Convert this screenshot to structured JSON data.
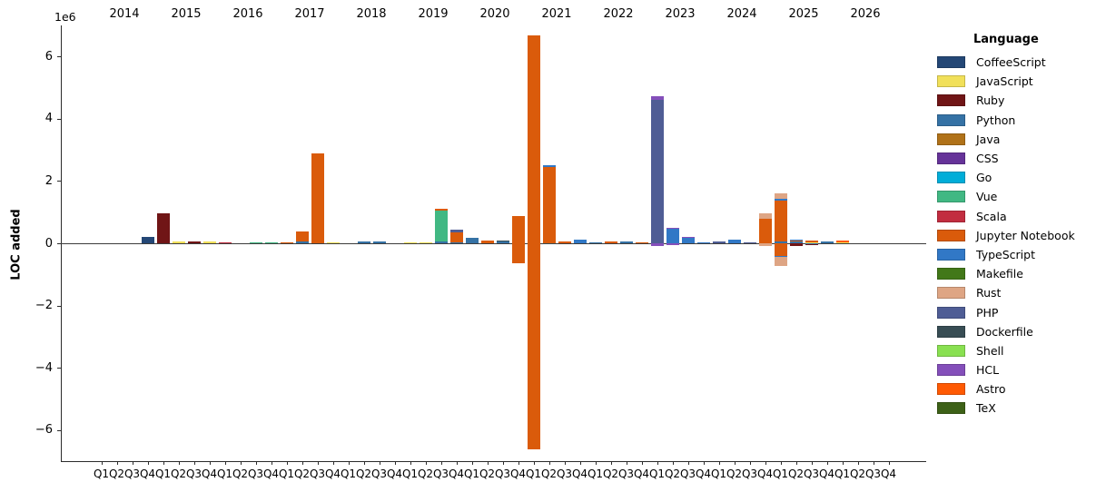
{
  "figure": {
    "ylabel": "LOC added",
    "offset_text": "1e6"
  },
  "chart_data": {
    "type": "bar",
    "stacked": true,
    "title": "",
    "xlabel": "",
    "ylabel": "LOC added",
    "y_offset_text": "1e6",
    "ylim": [
      -7000000,
      7000000
    ],
    "yticks": [
      6,
      4,
      2,
      0,
      -2,
      -4,
      -6
    ],
    "grid": false,
    "legend_position": "right",
    "legend_title": "Language",
    "years": [
      "2014",
      "2015",
      "2016",
      "2017",
      "2018",
      "2019",
      "2020",
      "2021",
      "2022",
      "2023",
      "2024",
      "2025",
      "2026"
    ],
    "quarter_labels": [
      "Q1",
      "Q2",
      "Q3",
      "Q4"
    ],
    "languages": [
      {
        "name": "CoffeeScript",
        "color": "#244776"
      },
      {
        "name": "JavaScript",
        "color": "#f1e05a"
      },
      {
        "name": "Ruby",
        "color": "#701516"
      },
      {
        "name": "Python",
        "color": "#3572A5"
      },
      {
        "name": "Java",
        "color": "#b07219"
      },
      {
        "name": "CSS",
        "color": "#663399"
      },
      {
        "name": "Go",
        "color": "#00ADD8"
      },
      {
        "name": "Vue",
        "color": "#41b883"
      },
      {
        "name": "Scala",
        "color": "#c22d40"
      },
      {
        "name": "Jupyter Notebook",
        "color": "#DA5B0B"
      },
      {
        "name": "TypeScript",
        "color": "#3178c6"
      },
      {
        "name": "Makefile",
        "color": "#427819"
      },
      {
        "name": "Rust",
        "color": "#dea584"
      },
      {
        "name": "PHP",
        "color": "#4F5D95"
      },
      {
        "name": "Dockerfile",
        "color": "#384d54"
      },
      {
        "name": "Shell",
        "color": "#89e051"
      },
      {
        "name": "HCL",
        "color": "#844FBA"
      },
      {
        "name": "Astro",
        "color": "#ff5a03"
      },
      {
        "name": "TeX",
        "color": "#3D6117"
      }
    ],
    "bars": [
      {
        "year": "2014",
        "quarter": "Q4",
        "segments": [
          {
            "language": "CoffeeScript",
            "value": 190000
          }
        ]
      },
      {
        "year": "2015",
        "quarter": "Q1",
        "segments": [
          {
            "language": "Ruby",
            "value": 970000
          }
        ]
      },
      {
        "year": "2015",
        "quarter": "Q2",
        "segments": [
          {
            "language": "JavaScript",
            "value": 50000
          }
        ]
      },
      {
        "year": "2015",
        "quarter": "Q3",
        "segments": [
          {
            "language": "Ruby",
            "value": 50000
          }
        ]
      },
      {
        "year": "2015",
        "quarter": "Q4",
        "segments": [
          {
            "language": "JavaScript",
            "value": 50000
          }
        ]
      },
      {
        "year": "2016",
        "quarter": "Q1",
        "segments": [
          {
            "language": "Scala",
            "value": 40000
          }
        ]
      },
      {
        "year": "2016",
        "quarter": "Q3",
        "segments": [
          {
            "language": "Vue",
            "value": 40000
          }
        ]
      },
      {
        "year": "2016",
        "quarter": "Q4",
        "segments": [
          {
            "language": "Vue",
            "value": 40000
          }
        ]
      },
      {
        "year": "2017",
        "quarter": "Q1",
        "segments": [
          {
            "language": "Jupyter Notebook",
            "value": 40000
          }
        ]
      },
      {
        "year": "2017",
        "quarter": "Q2",
        "segments": [
          {
            "language": "Python",
            "value": 60000
          },
          {
            "language": "Jupyter Notebook",
            "value": 330000
          }
        ]
      },
      {
        "year": "2017",
        "quarter": "Q3",
        "segments": [
          {
            "language": "Jupyter Notebook",
            "value": 2900000
          }
        ]
      },
      {
        "year": "2017",
        "quarter": "Q4",
        "segments": [
          {
            "language": "JavaScript",
            "value": 40000
          }
        ]
      },
      {
        "year": "2018",
        "quarter": "Q2",
        "segments": [
          {
            "language": "Python",
            "value": 70000
          }
        ]
      },
      {
        "year": "2018",
        "quarter": "Q3",
        "segments": [
          {
            "language": "Python",
            "value": 70000
          }
        ]
      },
      {
        "year": "2019",
        "quarter": "Q1",
        "segments": [
          {
            "language": "JavaScript",
            "value": 30000
          }
        ]
      },
      {
        "year": "2019",
        "quarter": "Q2",
        "segments": [
          {
            "language": "JavaScript",
            "value": 30000
          }
        ]
      },
      {
        "year": "2019",
        "quarter": "Q3",
        "segments": [
          {
            "language": "Python",
            "value": 50000
          },
          {
            "language": "Vue",
            "value": 1000000
          },
          {
            "language": "Jupyter Notebook",
            "value": 50000
          }
        ]
      },
      {
        "year": "2019",
        "quarter": "Q4",
        "segments": [
          {
            "language": "Python",
            "value": 40000
          },
          {
            "language": "Jupyter Notebook",
            "value": 300000
          },
          {
            "language": "PHP",
            "value": 110000
          }
        ]
      },
      {
        "year": "2020",
        "quarter": "Q1",
        "segments": [
          {
            "language": "Python",
            "value": 170000
          }
        ]
      },
      {
        "year": "2020",
        "quarter": "Q2",
        "segments": [
          {
            "language": "Jupyter Notebook",
            "value": 80000
          }
        ]
      },
      {
        "year": "2020",
        "quarter": "Q3",
        "segments": [
          {
            "language": "Python",
            "value": 70000
          },
          {
            "language": "Dockerfile",
            "value": 20000
          }
        ]
      },
      {
        "year": "2020",
        "quarter": "Q4",
        "segments": [
          {
            "language": "Jupyter Notebook",
            "value": 880000
          },
          {
            "language": "Jupyter Notebook",
            "value": -630000
          }
        ]
      },
      {
        "year": "2021",
        "quarter": "Q1",
        "segments": [
          {
            "language": "Jupyter Notebook",
            "value": 6680000
          },
          {
            "language": "Jupyter Notebook",
            "value": -6620000
          }
        ]
      },
      {
        "year": "2021",
        "quarter": "Q2",
        "segments": [
          {
            "language": "Jupyter Notebook",
            "value": 2450000
          },
          {
            "language": "TypeScript",
            "value": 70000
          },
          {
            "language": "Dockerfile",
            "value": -40000
          }
        ]
      },
      {
        "year": "2021",
        "quarter": "Q3",
        "segments": [
          {
            "language": "Jupyter Notebook",
            "value": 60000
          }
        ]
      },
      {
        "year": "2021",
        "quarter": "Q4",
        "segments": [
          {
            "language": "TypeScript",
            "value": 130000
          }
        ]
      },
      {
        "year": "2022",
        "quarter": "Q1",
        "segments": [
          {
            "language": "Python",
            "value": 40000
          }
        ]
      },
      {
        "year": "2022",
        "quarter": "Q2",
        "segments": [
          {
            "language": "Jupyter Notebook",
            "value": 70000
          }
        ]
      },
      {
        "year": "2022",
        "quarter": "Q3",
        "segments": [
          {
            "language": "Python",
            "value": 50000
          }
        ]
      },
      {
        "year": "2022",
        "quarter": "Q4",
        "segments": [
          {
            "language": "Jupyter Notebook",
            "value": 40000
          }
        ]
      },
      {
        "year": "2023",
        "quarter": "Q1",
        "segments": [
          {
            "language": "PHP",
            "value": 4620000
          },
          {
            "language": "HCL",
            "value": 110000
          },
          {
            "language": "HCL",
            "value": -80000
          }
        ]
      },
      {
        "year": "2023",
        "quarter": "Q2",
        "segments": [
          {
            "language": "TypeScript",
            "value": 460000
          },
          {
            "language": "HCL",
            "value": 30000
          },
          {
            "language": "HCL",
            "value": -50000
          }
        ]
      },
      {
        "year": "2023",
        "quarter": "Q3",
        "segments": [
          {
            "language": "TypeScript",
            "value": 170000
          },
          {
            "language": "HCL",
            "value": 20000
          }
        ]
      },
      {
        "year": "2023",
        "quarter": "Q4",
        "segments": [
          {
            "language": "TypeScript",
            "value": 40000
          }
        ]
      },
      {
        "year": "2024",
        "quarter": "Q1",
        "segments": [
          {
            "language": "PHP",
            "value": 50000
          }
        ]
      },
      {
        "year": "2024",
        "quarter": "Q2",
        "segments": [
          {
            "language": "TypeScript",
            "value": 120000
          }
        ]
      },
      {
        "year": "2024",
        "quarter": "Q3",
        "segments": [
          {
            "language": "PHP",
            "value": 20000
          }
        ]
      },
      {
        "year": "2024",
        "quarter": "Q4",
        "segments": [
          {
            "language": "Jupyter Notebook",
            "value": 780000
          },
          {
            "language": "Rust",
            "value": 190000
          },
          {
            "language": "Rust",
            "value": -80000
          }
        ]
      },
      {
        "year": "2025",
        "quarter": "Q1",
        "segments": [
          {
            "language": "Python",
            "value": 60000
          },
          {
            "language": "Jupyter Notebook",
            "value": 1320000
          },
          {
            "language": "TypeScript",
            "value": 60000
          },
          {
            "language": "Rust",
            "value": 160000
          },
          {
            "language": "Jupyter Notebook",
            "value": -400000
          },
          {
            "language": "TypeScript",
            "value": -40000
          },
          {
            "language": "Rust",
            "value": -280000
          }
        ]
      },
      {
        "year": "2025",
        "quarter": "Q2",
        "segments": [
          {
            "language": "Python",
            "value": 50000
          },
          {
            "language": "Jupyter Notebook",
            "value": 50000
          },
          {
            "language": "TypeScript",
            "value": 30000
          },
          {
            "language": "Ruby",
            "value": -80000
          }
        ]
      },
      {
        "year": "2025",
        "quarter": "Q3",
        "segments": [
          {
            "language": "JavaScript",
            "value": 20000
          },
          {
            "language": "Jupyter Notebook",
            "value": 80000
          },
          {
            "language": "Python",
            "value": -40000
          },
          {
            "language": "Ruby",
            "value": -30000
          }
        ]
      },
      {
        "year": "2025",
        "quarter": "Q4",
        "segments": [
          {
            "language": "Python",
            "value": 60000
          }
        ]
      },
      {
        "year": "2026",
        "quarter": "Q1",
        "segments": [
          {
            "language": "JavaScript",
            "value": 40000
          },
          {
            "language": "Astro",
            "value": 40000
          }
        ]
      }
    ]
  }
}
